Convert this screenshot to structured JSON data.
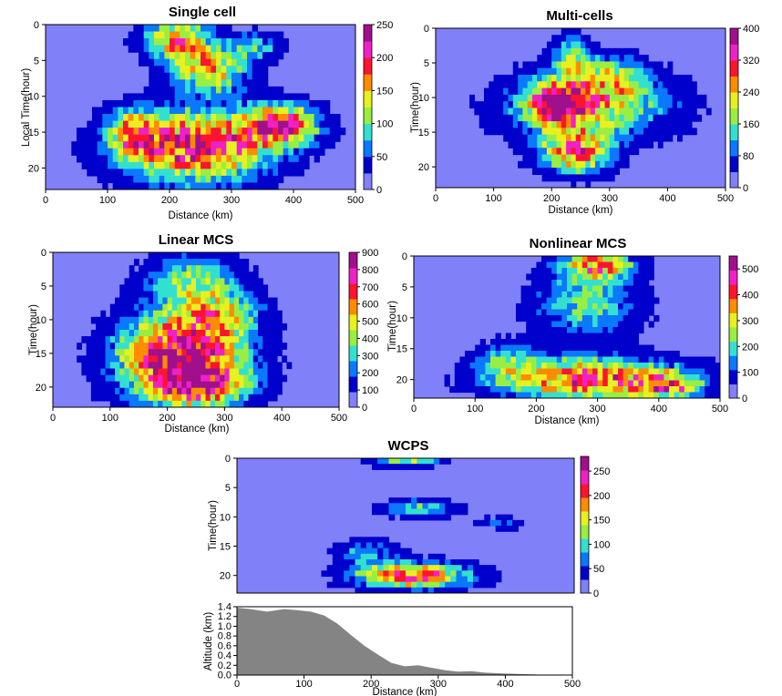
{
  "figure": {
    "colors": {
      "background_level": "#8080f8",
      "scale": [
        "#8080f8",
        "#0000cc",
        "#0a78ff",
        "#33e0d0",
        "#99ee44",
        "#e8f020",
        "#ff8c00",
        "#ff1430",
        "#f020c8",
        "#a0108c"
      ],
      "terrain": "#848484"
    }
  },
  "chart_data": [
    {
      "id": "single-cell",
      "type": "heatmap",
      "title": "Single cell",
      "xlabel": "Distance (km)",
      "ylabel": "Local Time(hour)",
      "xlim": [
        0,
        500
      ],
      "ylim": [
        23,
        0
      ],
      "xticks": [
        "0",
        "100",
        "200",
        "300",
        "400",
        "500"
      ],
      "yticks": [
        "0",
        "5",
        "10",
        "15",
        "20"
      ],
      "colorbar_ticks": [
        "0",
        "50",
        "100",
        "150",
        "200",
        "250"
      ],
      "vmax": 250,
      "blobs": [
        {
          "x": 215,
          "y": 2,
          "rx": 55,
          "ry": 3,
          "peak": 0.65
        },
        {
          "x": 265,
          "y": 6.5,
          "rx": 60,
          "ry": 3,
          "peak": 0.6
        },
        {
          "x": 340,
          "y": 3,
          "rx": 45,
          "ry": 2,
          "peak": 0.3
        },
        {
          "x": 240,
          "y": 17,
          "rx": 120,
          "ry": 5,
          "peak": 0.85
        },
        {
          "x": 380,
          "y": 14,
          "rx": 60,
          "ry": 3,
          "peak": 0.75
        },
        {
          "x": 140,
          "y": 15,
          "rx": 40,
          "ry": 3,
          "peak": 0.45
        }
      ]
    },
    {
      "id": "multi-cells",
      "type": "heatmap",
      "title": "Multi-cells",
      "xlabel": "Distance (km)",
      "ylabel": "Time(hour)",
      "xlim": [
        0,
        500
      ],
      "ylim": [
        23,
        0
      ],
      "xticks": [
        "0",
        "100",
        "200",
        "300",
        "400",
        "500"
      ],
      "yticks": [
        "0",
        "5",
        "10",
        "15",
        "20"
      ],
      "colorbar_ticks": [
        "0",
        "80",
        "160",
        "240",
        "320",
        "400"
      ],
      "vmax": 400,
      "blobs": [
        {
          "x": 265,
          "y": 11,
          "rx": 140,
          "ry": 5,
          "peak": 0.55
        },
        {
          "x": 210,
          "y": 11,
          "rx": 45,
          "ry": 3,
          "peak": 0.7
        },
        {
          "x": 240,
          "y": 18,
          "rx": 60,
          "ry": 3,
          "peak": 0.7
        },
        {
          "x": 235,
          "y": 4,
          "rx": 30,
          "ry": 3,
          "peak": 0.4
        },
        {
          "x": 300,
          "y": 7,
          "rx": 60,
          "ry": 3,
          "peak": 0.3
        }
      ]
    },
    {
      "id": "linear-mcs",
      "type": "heatmap",
      "title": "Linear MCS",
      "xlabel": "Distance (km)",
      "ylabel": "Time(hour)",
      "xlim": [
        0,
        500
      ],
      "ylim": [
        23,
        0
      ],
      "xticks": [
        "0",
        "100",
        "200",
        "300",
        "400",
        "500"
      ],
      "yticks": [
        "0",
        "5",
        "10",
        "15",
        "20"
      ],
      "colorbar_ticks": [
        "0",
        "100",
        "200",
        "300",
        "400",
        "500",
        "600",
        "700",
        "800",
        "900"
      ],
      "vmax": 900,
      "blobs": [
        {
          "x": 225,
          "y": 15.5,
          "rx": 110,
          "ry": 6.5,
          "peak": 0.95
        },
        {
          "x": 245,
          "y": 4,
          "rx": 80,
          "ry": 4,
          "peak": 0.42
        },
        {
          "x": 300,
          "y": 9,
          "rx": 70,
          "ry": 3,
          "peak": 0.35
        },
        {
          "x": 260,
          "y": 20,
          "rx": 90,
          "ry": 3,
          "peak": 0.4
        }
      ]
    },
    {
      "id": "nonlinear-mcs",
      "type": "heatmap",
      "title": "Nonlinear MCS",
      "xlabel": "Distance (km)",
      "ylabel": "Time(hour)",
      "xlim": [
        0,
        500
      ],
      "ylim": [
        23,
        0
      ],
      "xticks": [
        "0",
        "100",
        "200",
        "300",
        "400",
        "500"
      ],
      "yticks": [
        "0",
        "5",
        "10",
        "15",
        "20"
      ],
      "colorbar_ticks": [
        "0",
        "100",
        "200",
        "300",
        "400",
        "500"
      ],
      "vmax": 550,
      "blobs": [
        {
          "x": 290,
          "y": 20,
          "rx": 150,
          "ry": 3.5,
          "peak": 0.75
        },
        {
          "x": 300,
          "y": 1.5,
          "rx": 60,
          "ry": 2.5,
          "peak": 0.65
        },
        {
          "x": 280,
          "y": 8,
          "rx": 90,
          "ry": 5,
          "peak": 0.38
        },
        {
          "x": 420,
          "y": 21,
          "rx": 50,
          "ry": 2,
          "peak": 0.5
        },
        {
          "x": 150,
          "y": 17,
          "rx": 50,
          "ry": 3,
          "peak": 0.3
        }
      ]
    },
    {
      "id": "wcps",
      "type": "heatmap",
      "title": "WCPS",
      "xlabel": "",
      "ylabel": "Time(hour)",
      "xlim": [
        0,
        500
      ],
      "ylim": [
        23,
        0
      ],
      "yticks": [
        "0",
        "5",
        "10",
        "15",
        "20"
      ],
      "colorbar_ticks": [
        "0",
        "50",
        "100",
        "150",
        "200",
        "250"
      ],
      "vmax": 280,
      "blobs": [
        {
          "x": 260,
          "y": 20,
          "rx": 85,
          "ry": 2.2,
          "peak": 0.78
        },
        {
          "x": 250,
          "y": 0.5,
          "rx": 50,
          "ry": 1,
          "peak": 0.45
        },
        {
          "x": 270,
          "y": 8.5,
          "rx": 55,
          "ry": 1.5,
          "peak": 0.35
        },
        {
          "x": 390,
          "y": 11,
          "rx": 35,
          "ry": 1,
          "peak": 0.25
        },
        {
          "x": 190,
          "y": 16,
          "rx": 45,
          "ry": 2,
          "peak": 0.3
        }
      ]
    },
    {
      "id": "terrain",
      "type": "area",
      "title": "",
      "xlabel": "Distance (km)",
      "ylabel": "Altitude (km)",
      "xlim": [
        0,
        500
      ],
      "ylim": [
        0,
        1.4
      ],
      "xticks": [
        "0",
        "100",
        "200",
        "300",
        "400",
        "500"
      ],
      "yticks": [
        "0.0",
        "0.2",
        "0.4",
        "0.6",
        "0.8",
        "1.0",
        "1.2",
        "1.4"
      ],
      "x": [
        0,
        20,
        45,
        70,
        90,
        110,
        130,
        150,
        170,
        190,
        210,
        230,
        250,
        270,
        290,
        310,
        330,
        350,
        370,
        400,
        450,
        500
      ],
      "y": [
        1.38,
        1.35,
        1.3,
        1.35,
        1.33,
        1.3,
        1.22,
        1.05,
        0.82,
        0.6,
        0.42,
        0.25,
        0.18,
        0.2,
        0.15,
        0.1,
        0.07,
        0.08,
        0.05,
        0.03,
        0.01,
        0.0
      ]
    }
  ]
}
